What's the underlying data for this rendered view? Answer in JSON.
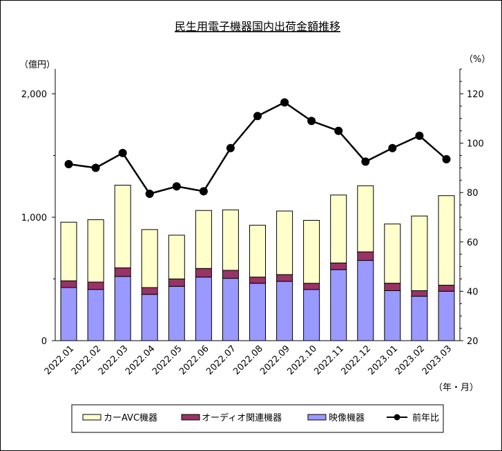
{
  "chart_data": {
    "type": "bar",
    "title": "民生用電子機器国内出荷金額推移",
    "left_unit": "（億円）",
    "right_unit": "（%）",
    "x_unit": "（年・月）",
    "categories": [
      "2022.01",
      "2022.02",
      "2022.03",
      "2022.04",
      "2022.05",
      "2022.06",
      "2022.07",
      "2022.08",
      "2022.09",
      "2022.10",
      "2022.11",
      "2022.12",
      "2023.01",
      "2023.02",
      "2023.03"
    ],
    "left_ylim": [
      0,
      2000
    ],
    "left_ticks": [
      0,
      1000,
      2000
    ],
    "left_tick_labels": [
      "0",
      "1,000",
      "2,000"
    ],
    "right_ylim": [
      20,
      140
    ],
    "right_ticks": [
      20,
      40,
      60,
      80,
      100,
      120
    ],
    "right_tick_labels": [
      "20",
      "40",
      "60",
      "80",
      "100",
      "120"
    ],
    "stacked_series": [
      {
        "name": "映像機器",
        "color": "#9999ff",
        "values": [
          430,
          415,
          520,
          375,
          440,
          515,
          505,
          465,
          480,
          415,
          575,
          650,
          405,
          360,
          400
        ]
      },
      {
        "name": "オーディオ関連機器",
        "color": "#993366",
        "values": [
          55,
          60,
          70,
          55,
          60,
          70,
          65,
          50,
          55,
          50,
          55,
          70,
          60,
          45,
          50
        ]
      },
      {
        "name": "カーAVC機器",
        "color": "#ffffcc",
        "values": [
          475,
          505,
          670,
          470,
          355,
          470,
          490,
          420,
          515,
          510,
          550,
          535,
          480,
          605,
          725
        ]
      }
    ],
    "line_series": {
      "name": "前年比",
      "color": "#000000",
      "values": [
        91.5,
        90.0,
        96.0,
        79.5,
        82.5,
        80.5,
        98.0,
        111.0,
        116.5,
        109.0,
        105.0,
        92.5,
        98.0,
        103.0,
        93.5
      ]
    },
    "legend": [
      "カーAVC機器",
      "オーディオ関連機器",
      "映像機器",
      "前年比"
    ],
    "legend_placement": "bottom",
    "grid": false
  }
}
